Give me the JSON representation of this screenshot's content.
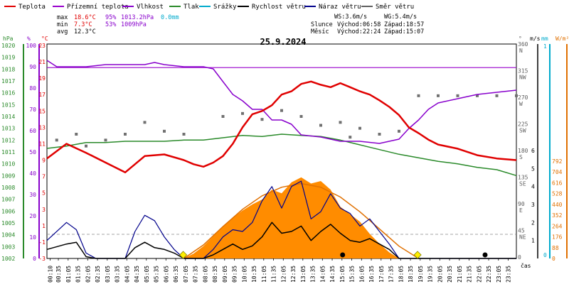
{
  "chart_data": {
    "type": "line",
    "title": "25.9.2024",
    "legend": [
      {
        "label": "Teplota",
        "color": "#e00000"
      },
      {
        "label": "Přízemní teplota",
        "color": "#9900cc"
      },
      {
        "label": "Vlhkost",
        "color": "#8800cc"
      },
      {
        "label": "Tlak",
        "color": "#2a8a2a"
      },
      {
        "label": "Srážky",
        "color": "#00aacc"
      },
      {
        "label": "Rychlost větru",
        "color": "#000000"
      },
      {
        "label": "Náraz větru",
        "color": "#00008b"
      },
      {
        "label": "Směr větru",
        "color": "#606060"
      }
    ],
    "stats": {
      "max_label": "max",
      "max_temp": "18.6°C",
      "max_hum": "95%",
      "max_press": "1013.2hPa",
      "max_rain": "0.0mm",
      "min_label": "min",
      "min_temp": "7.3°C",
      "min_hum": "53%",
      "min_press": "1009hPa",
      "avg_label": "avg",
      "avg_temp": "12.3°C"
    },
    "info": {
      "ws": "WS:3.6m/s",
      "wg": "WG:5.4m/s",
      "sun_label": "Slunce",
      "sunrise": "Východ:06:58",
      "sunset": "Západ:18:57",
      "moon_label": "Měsíc",
      "moonrise": "Východ:22:24",
      "moonset": "Západ:15:07"
    },
    "axes": {
      "hpa_title": "hPa",
      "pct_title": "%",
      "temp_title": "°C",
      "dir_title": "°",
      "ms_title": "m/s",
      "mm_title": "mm",
      "w_title": "W/m²",
      "hpa_ticks": [
        "1020",
        "1019",
        "1018",
        "1017",
        "1016",
        "1015",
        "1014",
        "1013",
        "1012",
        "1011",
        "1010",
        "1009",
        "1008",
        "1007",
        "1006",
        "1005",
        "1004",
        "1003",
        "1002"
      ],
      "pct_ticks": [
        "100",
        "90",
        "80",
        "70",
        "60",
        "50",
        "40",
        "30",
        "20",
        "10",
        "0"
      ],
      "temp_ticks": [
        "23",
        "21",
        "19",
        "17",
        "15",
        "13",
        "11",
        "9",
        "7",
        "5",
        "3",
        "1",
        "-1",
        "-3"
      ],
      "dir_ticks": [
        "360",
        "315",
        "270",
        "225",
        "180",
        "135",
        "90",
        "45",
        "0"
      ],
      "dir_names": [
        "N",
        "NW",
        "W",
        "SW",
        "S",
        "SE",
        "E",
        "NE",
        ""
      ],
      "ms_ticks": [
        "6",
        "5",
        "4",
        "3",
        "2",
        "1"
      ],
      "mm_ticks": [
        "1",
        "0"
      ],
      "w_ticks": [
        "792",
        "704",
        "616",
        "528",
        "440",
        "352",
        "264",
        "176",
        "88",
        "0"
      ],
      "time_label": "čas",
      "time_ticks": [
        "00:10",
        "00:35",
        "01:05",
        "01:35",
        "02:05",
        "02:35",
        "03:05",
        "03:35",
        "04:05",
        "04:35",
        "05:05",
        "05:35",
        "06:05",
        "06:35",
        "07:05",
        "07:35",
        "08:05",
        "08:35",
        "09:05",
        "09:35",
        "10:05",
        "10:35",
        "11:05",
        "11:35",
        "12:05",
        "12:35",
        "13:05",
        "13:35",
        "14:05",
        "14:35",
        "15:05",
        "15:35",
        "16:05",
        "16:35",
        "17:05",
        "17:35",
        "18:05",
        "18:35",
        "19:05",
        "19:35",
        "20:05",
        "20:35",
        "21:05",
        "21:35",
        "22:05",
        "22:35",
        "23:05",
        "23:35"
      ]
    },
    "series": [
      {
        "name": "Teplota",
        "unit": "°C",
        "x_hours": [
          0,
          1,
          2,
          3,
          4,
          5,
          6,
          7,
          7.5,
          8,
          8.5,
          9,
          9.5,
          10,
          10.5,
          11,
          11.5,
          12,
          12.5,
          13,
          13.5,
          14,
          14.5,
          15,
          15.5,
          16,
          16.5,
          17,
          17.5,
          18,
          18.5,
          19,
          19.5,
          20,
          21,
          22,
          23,
          24
        ],
        "values": [
          9.2,
          11,
          9.9,
          8.7,
          7.5,
          9.5,
          9.7,
          9,
          8.5,
          8.2,
          8.7,
          9.5,
          11,
          13,
          14.6,
          15,
          15.7,
          17,
          17.4,
          18.3,
          18.6,
          18.2,
          17.9,
          18.4,
          17.9,
          17.4,
          17,
          16.3,
          15.5,
          14.5,
          13,
          12.3,
          11.5,
          10.9,
          10.4,
          9.6,
          9.2,
          9
        ]
      },
      {
        "name": "Přízemní teplota",
        "unit": "°C",
        "x_hours": [
          0,
          24
        ],
        "values": [
          20.3,
          20.3
        ]
      },
      {
        "name": "Vlhkost",
        "unit": "%",
        "x_hours": [
          0,
          0.5,
          1,
          2,
          3,
          4,
          5,
          5.5,
          6,
          7,
          8,
          8.5,
          9,
          9.5,
          10,
          10.5,
          11,
          11.5,
          12,
          12.5,
          13,
          14,
          15,
          16,
          17,
          18,
          18.5,
          19,
          19.5,
          20,
          21,
          22,
          23,
          24
        ],
        "values": [
          93,
          90,
          90,
          90,
          91,
          91,
          91,
          92,
          91,
          90,
          90,
          89,
          83,
          77,
          74,
          70,
          70,
          65,
          65,
          63,
          58,
          57,
          55,
          55,
          54,
          56,
          61,
          65,
          70,
          73,
          75,
          77,
          78,
          79
        ]
      },
      {
        "name": "Tlak",
        "unit": "hPa",
        "x_hours": [
          0,
          1,
          2,
          3,
          4,
          5,
          6,
          7,
          8,
          9,
          10,
          11,
          12,
          13,
          14,
          15,
          16,
          17,
          18,
          19,
          20,
          21,
          22,
          23,
          24
        ],
        "values": [
          1011.3,
          1011.5,
          1011.8,
          1011.8,
          1011.9,
          1011.9,
          1011.9,
          1012.0,
          1012.0,
          1012.2,
          1012.4,
          1012.3,
          1012.5,
          1012.4,
          1012.3,
          1012.0,
          1011.6,
          1011.2,
          1010.8,
          1010.5,
          1010.2,
          1010.0,
          1009.7,
          1009.5,
          1009.0
        ]
      },
      {
        "name": "Rychlost větru",
        "unit": "m/s",
        "x_hours": [
          0,
          1,
          1.5,
          2,
          2.5,
          3,
          3.5,
          4,
          4.5,
          5,
          5.5,
          6,
          6.5,
          7,
          7.5,
          8,
          8.5,
          9,
          9.5,
          10,
          10.5,
          11,
          11.5,
          12,
          12.5,
          13,
          13.5,
          14,
          14.5,
          15,
          15.5,
          16,
          16.5,
          17,
          17.5,
          18,
          18.5,
          19,
          19.5,
          20,
          21,
          22,
          23,
          24
        ],
        "values": [
          0.5,
          0.8,
          0.9,
          0.1,
          0,
          0,
          0,
          0,
          0.6,
          0.9,
          0.6,
          0.5,
          0.3,
          0,
          0,
          0,
          0.2,
          0.5,
          0.8,
          0.5,
          0.7,
          1.2,
          2,
          1.4,
          1.5,
          1.8,
          1,
          1.5,
          1.9,
          1.4,
          1,
          0.9,
          1.1,
          0.8,
          0.5,
          0,
          0,
          0,
          0,
          0,
          0,
          0,
          0,
          0
        ]
      },
      {
        "name": "Náraz větru",
        "unit": "m/s",
        "x_hours": [
          0,
          1,
          1.5,
          2,
          2.5,
          3,
          3.5,
          4,
          4.5,
          5,
          5.5,
          6,
          6.5,
          7,
          7.5,
          8,
          8.5,
          9,
          9.5,
          10,
          10.5,
          11,
          11.5,
          12,
          12.5,
          13,
          13.5,
          14,
          14.5,
          15,
          15.5,
          16,
          16.5,
          17,
          17.5,
          18,
          18.5,
          19,
          19.5,
          20,
          21,
          22,
          23,
          24
        ],
        "values": [
          1,
          2,
          1.6,
          0.3,
          0,
          0,
          0,
          0,
          1.5,
          2.4,
          2.1,
          1.2,
          0.5,
          0,
          0,
          0,
          0.5,
          1.2,
          1.6,
          1.5,
          2,
          3.2,
          4,
          2.8,
          4,
          4.3,
          2.2,
          2.6,
          3.6,
          2.8,
          2.5,
          1.8,
          2.2,
          1.5,
          0.8,
          0,
          0,
          0,
          0,
          0,
          0,
          0,
          0,
          0
        ]
      },
      {
        "name": "Sluneční záření",
        "unit": "W/m²",
        "x_hours": [
          7,
          7.5,
          8,
          8.5,
          9,
          9.5,
          10,
          10.5,
          11,
          11.5,
          12,
          12.5,
          13,
          13.5,
          14,
          14.5,
          15,
          15.5,
          16,
          16.5,
          17,
          17.5,
          18
        ],
        "values": [
          0,
          40,
          100,
          180,
          260,
          330,
          390,
          440,
          480,
          560,
          530,
          620,
          660,
          610,
          630,
          560,
          420,
          360,
          300,
          200,
          120,
          50,
          0
        ]
      },
      {
        "name": "Max. sluneční záření",
        "unit": "W/m²",
        "x_hours": [
          7,
          8,
          9,
          10,
          11,
          12,
          13,
          14,
          15,
          16,
          17,
          18,
          19
        ],
        "values": [
          0,
          110,
          260,
          400,
          510,
          580,
          610,
          580,
          500,
          380,
          240,
          100,
          0
        ]
      },
      {
        "name": "Směr větru",
        "unit": "°",
        "x_hours": [
          0.5,
          1.5,
          2,
          3,
          4,
          5,
          6,
          7,
          9,
          10,
          11,
          12,
          13,
          14,
          15,
          15.5,
          16,
          17,
          18,
          19,
          20,
          21,
          22,
          23,
          24
        ],
        "values": [
          200,
          210,
          190,
          200,
          210,
          230,
          215,
          210,
          240,
          245,
          235,
          250,
          240,
          225,
          230,
          205,
          220,
          210,
          215,
          275,
          275,
          275,
          275,
          275,
          275
        ]
      }
    ],
    "markers": {
      "rain_mm": "0.0mm"
    }
  }
}
